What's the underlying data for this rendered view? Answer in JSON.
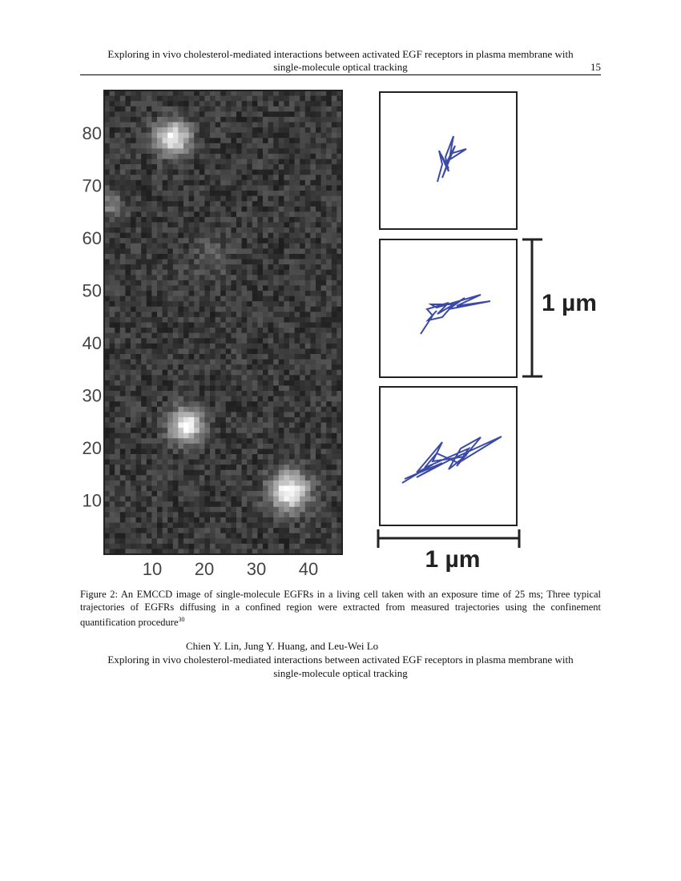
{
  "header": {
    "title_line1": "Exploring in vivo cholesterol-mediated interactions between activated EGF receptors in plasma membrane with",
    "title_line2": "single-molecule optical tracking",
    "page_number": "15"
  },
  "figure": {
    "image_yticks": [
      80,
      70,
      60,
      50,
      40,
      30,
      20,
      10
    ],
    "image_xticks": [
      10,
      20,
      30,
      40
    ],
    "vertical_scale_label": "1 µm",
    "horizontal_scale_label": "1 µm"
  },
  "caption": {
    "text": "Figure 2:  An EMCCD image of single-molecule EGFRs in a living cell taken with an exposure time of 25 ms; Three typical trajectories of EGFRs diffusing in a confined region were extracted from measured trajectories using the confinement quantification procedure",
    "ref": "30"
  },
  "footer": {
    "authors": "Chien Y. Lin, Jung Y. Huang, and Leu-Wei Lo",
    "title_line1": "Exploring in vivo cholesterol-mediated interactions between activated EGF receptors in plasma membrane with",
    "title_line2": "single-molecule optical tracking"
  }
}
